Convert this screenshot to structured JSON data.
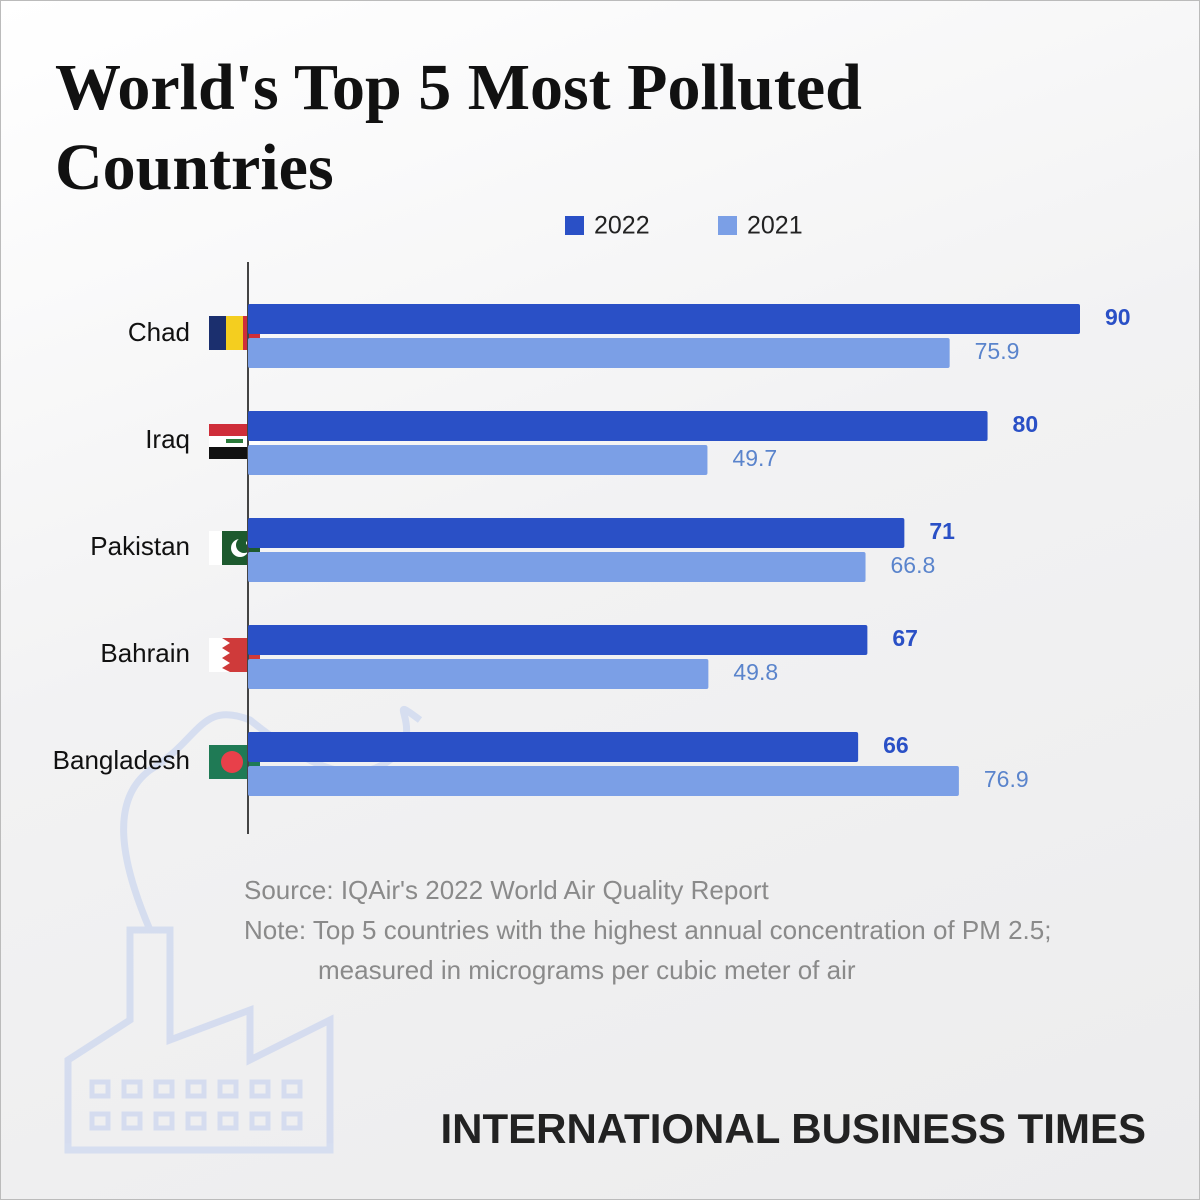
{
  "chart_data": {
    "type": "bar",
    "orientation": "horizontal",
    "title": "World's Top 5 Most Polluted Countries",
    "categories": [
      "Chad",
      "Iraq",
      "Pakistan",
      "Bahrain",
      "Bangladesh"
    ],
    "series": [
      {
        "name": "2022",
        "color": "#2a50c6",
        "label_color": "#2a50c6",
        "values": [
          90,
          80,
          71,
          67,
          66
        ]
      },
      {
        "name": "2021",
        "color": "#7b9fe6",
        "label_color": "#5a84cc",
        "values": [
          75.9,
          49.7,
          66.8,
          49.8,
          76.9
        ]
      }
    ],
    "source": "Source: IQAir's 2022 World Air Quality Report",
    "note": [
      "Note: Top 5 countries with the highest annual concentration of PM 2.5;",
      "measured in micrograms per cubic meter of air"
    ],
    "brand": "INTERNATIONAL BUSINESS TIMES"
  }
}
